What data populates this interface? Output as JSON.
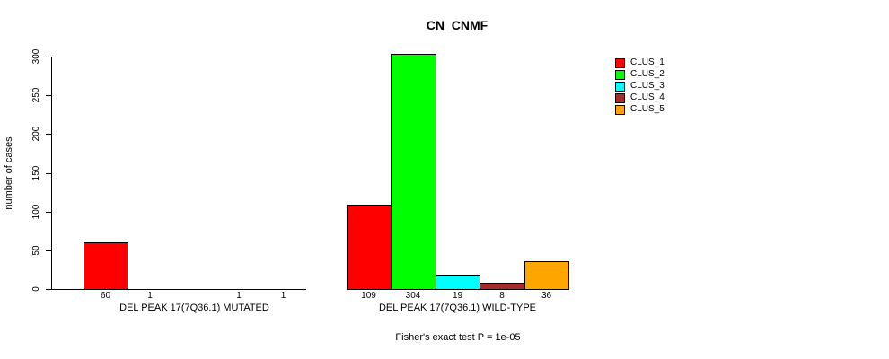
{
  "chart_data": {
    "type": "bar",
    "title": "CN_CNMF",
    "ylabel": "number of cases",
    "xlabel": "",
    "footnote": "Fisher's exact test P = 1e-05",
    "ylim": [
      0,
      300
    ],
    "yticks": [
      "0",
      "50",
      "100",
      "150",
      "200",
      "250",
      "300"
    ],
    "grid": false,
    "legend_position": "right",
    "axis_color": "#000000",
    "background_color": "#ffffff",
    "legend": [
      {
        "label": "CLUS_1",
        "color": "#FF0000"
      },
      {
        "label": "CLUS_2",
        "color": "#00FF00"
      },
      {
        "label": "CLUS_3",
        "color": "#00FFFF"
      },
      {
        "label": "CLUS_4",
        "color": "#A52A2A"
      },
      {
        "label": "CLUS_5",
        "color": "#FFA500"
      }
    ],
    "groups": [
      {
        "label": "DEL PEAK 17(7Q36.1) MUTATED",
        "values": [
          60,
          1,
          0,
          1,
          1
        ],
        "value_labels": [
          "60",
          "1",
          "",
          "1",
          "1"
        ]
      },
      {
        "label": "DEL PEAK 17(7Q36.1) WILD-TYPE",
        "values": [
          109,
          304,
          19,
          8,
          36
        ],
        "value_labels": [
          "109",
          "304",
          "19",
          "8",
          "36"
        ]
      }
    ]
  }
}
